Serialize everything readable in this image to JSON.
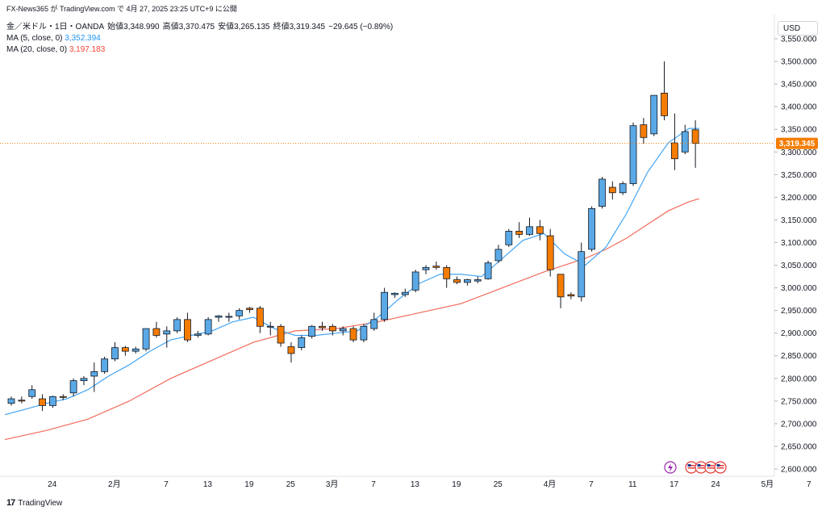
{
  "header": {
    "source_line": "FX-News365 が TradingView.com で 4月 27, 2025 23:25 UTC+9 に公開",
    "instrument": "金／米ドル・1日・OANDA",
    "open_label": "始値",
    "open": "3,348.990",
    "high_label": "高値",
    "high": "3,370.475",
    "low_label": "安値",
    "low": "3,265.135",
    "close_label": "終値",
    "close": "3,319.345",
    "change": "−29.645 (−0.89%)",
    "ma5_label": "MA (5, close, 0)",
    "ma5_value": "3,352.394",
    "ma20_label": "MA (20, close, 0)",
    "ma20_value": "3,197.183"
  },
  "currency": "USD",
  "price_tag": "3,319.345",
  "footer": {
    "logo_text": "17",
    "brand": "TradingView"
  },
  "icons": {
    "flash": "lightning-icon",
    "events": "us-flag-icon"
  },
  "colors": {
    "up": "#5aa9e6",
    "down": "#f57c00",
    "ma5": "#42a5f5",
    "ma20": "#f26b5b",
    "last_line": "#f57c00"
  },
  "chart_data": {
    "type": "candlestick",
    "ylim": [
      2600,
      3550
    ],
    "yticks": [
      "2,600.000",
      "2,650.000",
      "2,700.000",
      "2,750.000",
      "2,800.000",
      "2,850.000",
      "2,900.000",
      "2,950.000",
      "3,000.000",
      "3,050.000",
      "3,100.000",
      "3,150.000",
      "3,200.000",
      "3,250.000",
      "3,300.000",
      "3,350.000",
      "3,400.000",
      "3,450.000",
      "3,500.000",
      "3,550.000"
    ],
    "xticks": [
      {
        "label": "24",
        "index": 2
      },
      {
        "label": "2月",
        "index": 8
      },
      {
        "label": "7",
        "index": 13
      },
      {
        "label": "13",
        "index": 17
      },
      {
        "label": "19",
        "index": 21
      },
      {
        "label": "25",
        "index": 25
      },
      {
        "label": "3月",
        "index": 29
      },
      {
        "label": "7",
        "index": 33
      },
      {
        "label": "13",
        "index": 37
      },
      {
        "label": "19",
        "index": 41
      },
      {
        "label": "25",
        "index": 45
      },
      {
        "label": "4月",
        "index": 50
      },
      {
        "label": "7",
        "index": 54
      },
      {
        "label": "11",
        "index": 58
      },
      {
        "label": "17",
        "index": 62
      },
      {
        "label": "24",
        "index": 66
      },
      {
        "label": "5月",
        "index": 71
      },
      {
        "label": "7",
        "index": 75
      }
    ],
    "candles": [
      [
        2745,
        2760,
        2740,
        2755
      ],
      [
        2752,
        2760,
        2745,
        2750
      ],
      [
        2760,
        2785,
        2755,
        2775
      ],
      [
        2755,
        2765,
        2728,
        2740
      ],
      [
        2740,
        2762,
        2735,
        2760
      ],
      [
        2760,
        2765,
        2752,
        2758
      ],
      [
        2768,
        2800,
        2760,
        2795
      ],
      [
        2795,
        2805,
        2785,
        2800
      ],
      [
        2805,
        2835,
        2770,
        2815
      ],
      [
        2815,
        2848,
        2810,
        2843
      ],
      [
        2843,
        2880,
        2838,
        2868
      ],
      [
        2868,
        2872,
        2850,
        2860
      ],
      [
        2860,
        2870,
        2855,
        2865
      ],
      [
        2865,
        2910,
        2860,
        2910
      ],
      [
        2910,
        2925,
        2890,
        2895
      ],
      [
        2898,
        2915,
        2868,
        2905
      ],
      [
        2905,
        2935,
        2900,
        2930
      ],
      [
        2930,
        2945,
        2880,
        2885
      ],
      [
        2895,
        2905,
        2890,
        2898
      ],
      [
        2898,
        2935,
        2895,
        2930
      ],
      [
        2935,
        2940,
        2925,
        2938
      ],
      [
        2935,
        2945,
        2925,
        2937
      ],
      [
        2938,
        2955,
        2930,
        2950
      ],
      [
        2955,
        2958,
        2945,
        2952
      ],
      [
        2955,
        2960,
        2900,
        2915
      ],
      [
        2915,
        2925,
        2895,
        2915
      ],
      [
        2915,
        2920,
        2870,
        2878
      ],
      [
        2870,
        2880,
        2835,
        2855
      ],
      [
        2868,
        2895,
        2862,
        2890
      ],
      [
        2893,
        2918,
        2888,
        2915
      ],
      [
        2915,
        2925,
        2905,
        2912
      ],
      [
        2915,
        2920,
        2895,
        2905
      ],
      [
        2905,
        2915,
        2895,
        2910
      ],
      [
        2910,
        2915,
        2880,
        2885
      ],
      [
        2885,
        2920,
        2880,
        2915
      ],
      [
        2910,
        2945,
        2905,
        2930
      ],
      [
        2930,
        3000,
        2925,
        2990
      ],
      [
        2985,
        2990,
        2978,
        2988
      ],
      [
        2985,
        2998,
        2980,
        2990
      ],
      [
        2995,
        3040,
        2990,
        3035
      ],
      [
        3040,
        3050,
        3030,
        3045
      ],
      [
        3048,
        3058,
        3040,
        3045
      ],
      [
        3045,
        3050,
        3000,
        3020
      ],
      [
        3018,
        3025,
        3008,
        3012
      ],
      [
        3012,
        3020,
        3005,
        3018
      ],
      [
        3015,
        3025,
        3010,
        3018
      ],
      [
        3020,
        3060,
        3018,
        3055
      ],
      [
        3060,
        3095,
        3055,
        3085
      ],
      [
        3095,
        3130,
        3090,
        3125
      ],
      [
        3125,
        3145,
        3110,
        3118
      ],
      [
        3118,
        3155,
        3115,
        3135
      ],
      [
        3135,
        3150,
        3105,
        3120
      ],
      [
        3115,
        3130,
        3025,
        3040
      ],
      [
        3030,
        3030,
        2955,
        2980
      ],
      [
        2985,
        2990,
        2975,
        2982
      ],
      [
        2980,
        3100,
        2970,
        3080
      ],
      [
        3085,
        3180,
        3080,
        3175
      ],
      [
        3180,
        3245,
        3175,
        3240
      ],
      [
        3222,
        3235,
        3195,
        3210
      ],
      [
        3210,
        3235,
        3205,
        3230
      ],
      [
        3230,
        3365,
        3225,
        3358
      ],
      [
        3360,
        3375,
        3318,
        3332
      ],
      [
        3340,
        3425,
        3335,
        3425
      ],
      [
        3430,
        3500,
        3370,
        3380
      ],
      [
        3320,
        3385,
        3260,
        3285
      ],
      [
        3300,
        3360,
        3295,
        3345
      ],
      [
        3349,
        3370,
        3265,
        3319
      ]
    ],
    "ma5": [
      [
        0,
        2720
      ],
      [
        2,
        2732
      ],
      [
        4,
        2745
      ],
      [
        6,
        2755
      ],
      [
        8,
        2775
      ],
      [
        10,
        2805
      ],
      [
        12,
        2830
      ],
      [
        14,
        2860
      ],
      [
        16,
        2885
      ],
      [
        18,
        2895
      ],
      [
        20,
        2905
      ],
      [
        22,
        2925
      ],
      [
        24,
        2935
      ],
      [
        26,
        2910
      ],
      [
        28,
        2895
      ],
      [
        30,
        2895
      ],
      [
        32,
        2900
      ],
      [
        34,
        2905
      ],
      [
        36,
        2935
      ],
      [
        38,
        2975
      ],
      [
        40,
        3010
      ],
      [
        42,
        3030
      ],
      [
        44,
        3030
      ],
      [
        46,
        3025
      ],
      [
        48,
        3065
      ],
      [
        50,
        3105
      ],
      [
        52,
        3120
      ],
      [
        54,
        3075
      ],
      [
        56,
        3050
      ],
      [
        58,
        3090
      ],
      [
        60,
        3165
      ],
      [
        62,
        3255
      ],
      [
        64,
        3320
      ],
      [
        66,
        3352
      ],
      [
        67,
        3352
      ]
    ],
    "ma20": [
      [
        0,
        2665
      ],
      [
        4,
        2685
      ],
      [
        8,
        2710
      ],
      [
        12,
        2750
      ],
      [
        16,
        2800
      ],
      [
        20,
        2840
      ],
      [
        24,
        2880
      ],
      [
        28,
        2905
      ],
      [
        32,
        2910
      ],
      [
        36,
        2925
      ],
      [
        40,
        2945
      ],
      [
        44,
        2965
      ],
      [
        48,
        3000
      ],
      [
        52,
        3035
      ],
      [
        56,
        3065
      ],
      [
        58,
        3085
      ],
      [
        60,
        3110
      ],
      [
        62,
        3140
      ],
      [
        64,
        3170
      ],
      [
        66,
        3190
      ],
      [
        67,
        3197
      ]
    ]
  }
}
